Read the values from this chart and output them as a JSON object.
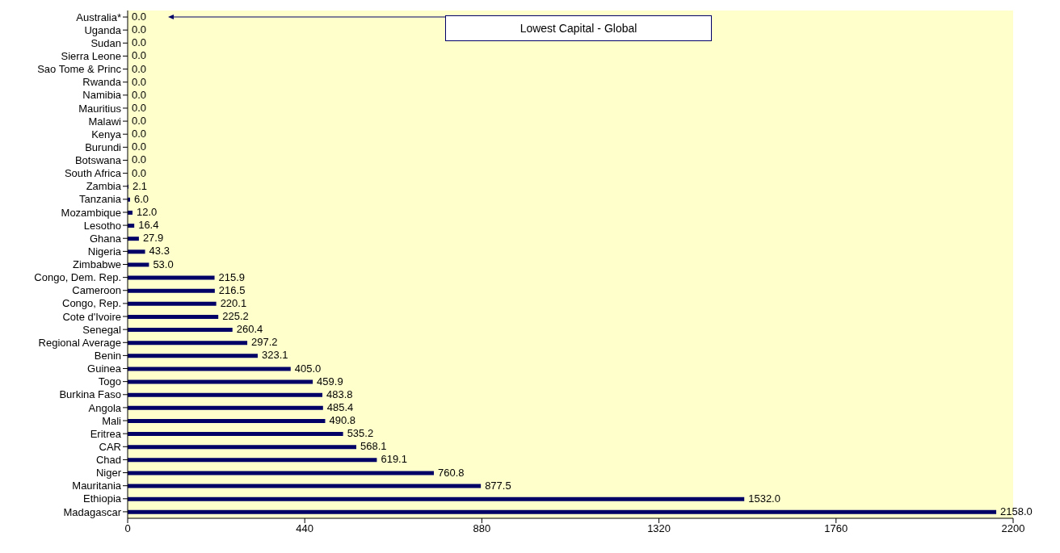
{
  "chart_data": {
    "type": "bar",
    "orientation": "horizontal",
    "categories": [
      "Australia*",
      "Uganda",
      "Sudan",
      "Sierra Leone",
      "Sao Tome & Princ",
      "Rwanda",
      "Namibia",
      "Mauritius",
      "Malawi",
      "Kenya",
      "Burundi",
      "Botswana",
      "South Africa",
      "Zambia",
      "Tanzania",
      "Mozambique",
      "Lesotho",
      "Ghana",
      "Nigeria",
      "Zimbabwe",
      "Congo, Dem. Rep.",
      "Cameroon",
      "Congo, Rep.",
      "Cote d'Ivoire",
      "Senegal",
      "Regional Average",
      "Benin",
      "Guinea",
      "Togo",
      "Burkina Faso",
      "Angola",
      "Mali",
      "Eritrea",
      "CAR",
      "Chad",
      "Niger",
      "Mauritania",
      "Ethiopia",
      "Madagascar"
    ],
    "values": [
      0,
      0,
      0,
      0,
      0,
      0,
      0,
      0,
      0,
      0,
      0,
      0,
      0,
      2.1,
      6,
      12,
      16.4,
      27.9,
      43.3,
      53,
      215.9,
      216.5,
      220.1,
      225.2,
      260.4,
      297.2,
      323.1,
      405,
      459.9,
      483.8,
      485.4,
      490.8,
      535.2,
      568.1,
      619.1,
      760.8,
      877.5,
      1532,
      2158
    ],
    "value_labels": [
      "0.0",
      "0.0",
      "0.0",
      "0.0",
      "0.0",
      "0.0",
      "0.0",
      "0.0",
      "0.0",
      "0.0",
      "0.0",
      "0.0",
      "0.0",
      "2.1",
      "6.0",
      "12.0",
      "16.4",
      "27.9",
      "43.3",
      "53.0",
      "215.9",
      "216.5",
      "220.1",
      "225.2",
      "260.4",
      "297.2",
      "323.1",
      "405.0",
      "459.9",
      "483.8",
      "485.4",
      "490.8",
      "535.2",
      "568.1",
      "619.1",
      "760.8",
      "877.5",
      "1532.0",
      "2158.0"
    ],
    "color": "#000066",
    "xlim": [
      0,
      2200
    ],
    "xticks": [
      0,
      440,
      880,
      1320,
      1760,
      2200
    ],
    "grid": false,
    "annotations": [
      "Lowest Capital - Global"
    ]
  }
}
